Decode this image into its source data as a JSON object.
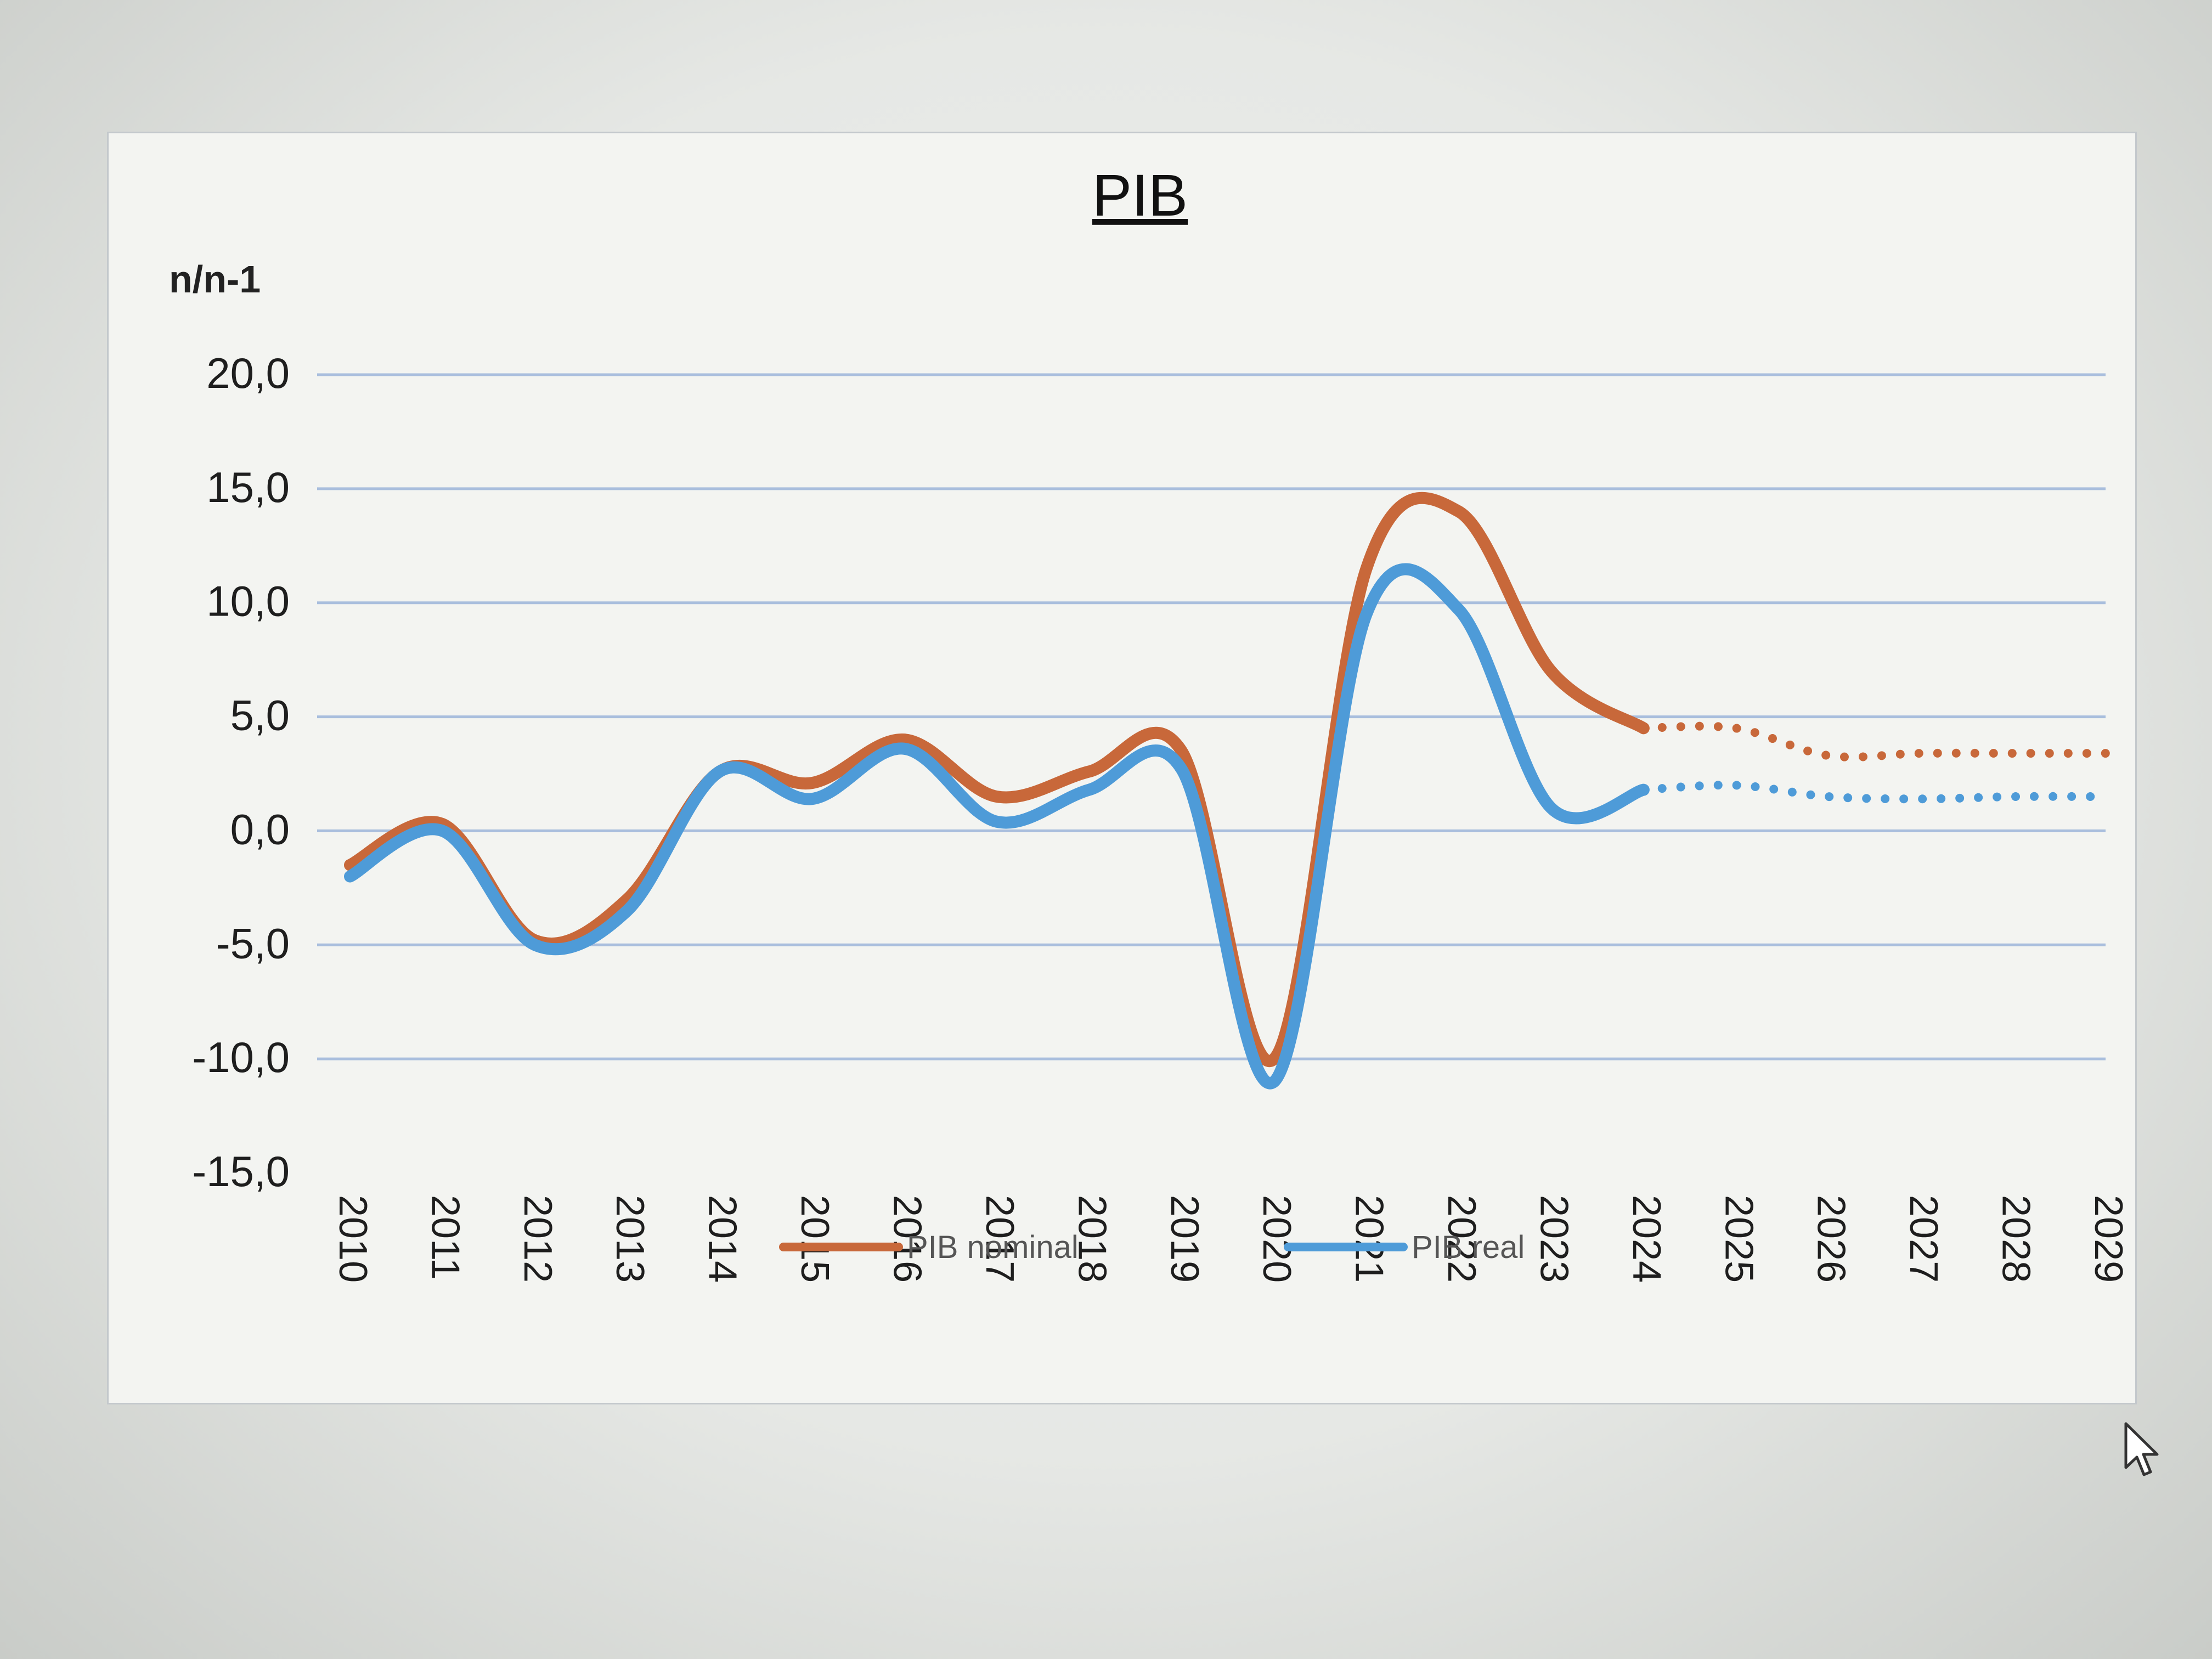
{
  "chart_data": {
    "type": "line",
    "title": "PIB",
    "ylabel": "n/n-1",
    "xlabel": "",
    "ylim": [
      -15,
      20
    ],
    "yticks": [
      20,
      15,
      10,
      5,
      0,
      -5,
      -10,
      -15
    ],
    "ytick_labels": [
      "20,0",
      "15,0",
      "10,0",
      "5,0",
      "0,0",
      "-5,0",
      "-10,0",
      "-15,0"
    ],
    "categories": [
      "2010",
      "2011",
      "2012",
      "2013",
      "2014",
      "2015",
      "2016",
      "2017",
      "2018",
      "2019",
      "2020",
      "2021",
      "2022",
      "2023",
      "2024",
      "2025",
      "2026",
      "2027",
      "2028",
      "2029"
    ],
    "grid": true,
    "legend_position": "bottom",
    "observed_through": "2024",
    "projection_style": "dotted",
    "series": [
      {
        "name": "PIB nominal",
        "color": "#c8683a",
        "values": [
          -1.5,
          0.3,
          -4.8,
          -3.0,
          2.6,
          2.1,
          4.0,
          1.5,
          2.6,
          3.5,
          -10.0,
          11.5,
          14.0,
          7.0,
          4.5,
          4.5,
          3.3,
          3.4,
          3.4,
          3.4
        ]
      },
      {
        "name": "PIB real",
        "color": "#4e9bd8",
        "values": [
          -2.0,
          0.0,
          -5.0,
          -3.5,
          2.6,
          1.4,
          3.6,
          0.4,
          1.8,
          2.7,
          -11.0,
          9.5,
          9.7,
          1.0,
          1.8,
          2.0,
          1.5,
          1.4,
          1.5,
          1.5
        ]
      }
    ]
  },
  "screen": {
    "cursor_icon": "mouse-pointer-icon"
  }
}
